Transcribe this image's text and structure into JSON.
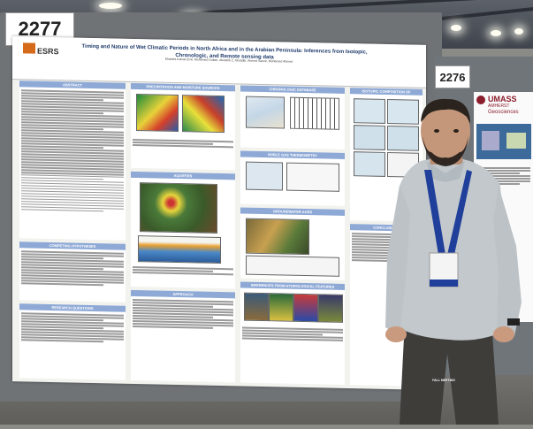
{
  "poster": {
    "board_number": "2277",
    "title": "Timing and Nature of Wet Climatic Periods in North Africa and in the Arabian Peninsula: Inferences from Isotopic, Chronologic, and Remote sensing data",
    "authors": "Mustafa Kamal Emil, Mohamed Sultan, Abotalib Z. Abotalib, Ahmed Sauck, Mohamed Ahmed",
    "logo_text": "ESRS",
    "sections": {
      "abstract": "ABSTRACT",
      "precip": "PRECIPITATION AND MOISTURE SOURCES",
      "chrono": "CHRONOLOGIC DATABASE",
      "isotopic": "ISOTOPIC COMPOSITION OF GROUNDWATER",
      "aquifers": "AQUIFERS",
      "noble": "NOBLE GAS THERMOMETRY",
      "competing": "COMPETING HYPOTHESES",
      "gw_ages": "GROUNDWATER AGES",
      "research": "RESEARCH QUESTIONS",
      "approach": "APPROACH",
      "hydro": "INFERENCES FROM HYDROLOGICAL FEATURES",
      "conclusions": "CONCLUSIONS"
    }
  },
  "neighbor_poster": {
    "board_number": "2276",
    "brand": "UMASS",
    "brand_sub": "AMHERST",
    "dept": "Geosciences"
  },
  "badge": {
    "label": "FALL MEETING"
  }
}
